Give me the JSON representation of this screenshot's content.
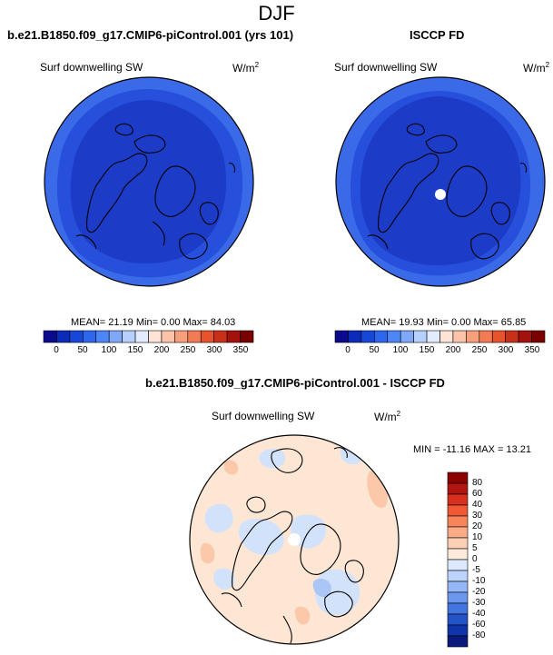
{
  "season": "DJF",
  "left_panel": {
    "title": "b.e21.B1850.f09_g17.CMIP6-piControl.001 (yrs 101)",
    "variable": "Surf downwelling SW",
    "units_base": "W/m",
    "units_exp": "2",
    "stats": "MEAN=  21.19  Min=   0.00  Max=  84.03"
  },
  "right_panel": {
    "title": "ISCCP FD",
    "variable": "Surf downwelling SW",
    "units_base": "W/m",
    "units_exp": "2",
    "stats": "MEAN=  19.93  Min=   0.00  Max=  65.85"
  },
  "diff_panel": {
    "title": "b.e21.B1850.f09_g17.CMIP6-piControl.001 - ISCCP FD",
    "variable": "Surf downwelling SW",
    "units_base": "W/m",
    "units_exp": "2",
    "stats": "MIN = -11.16 MAX =  13.21"
  },
  "colorbar_abs": {
    "ticks": [
      "0",
      "50",
      "100",
      "150",
      "200",
      "250",
      "300",
      "350"
    ],
    "colors": [
      "#0a0a8c",
      "#0c2bb8",
      "#1747d9",
      "#2f66ee",
      "#4f86f7",
      "#7fa8fb",
      "#b7cffd",
      "#e3ecfe",
      "#fde4d6",
      "#fbc4a8",
      "#f8a07c",
      "#f27b55",
      "#e6532d",
      "#c8301a",
      "#a5120e",
      "#7a0000"
    ]
  },
  "colorbar_diff": {
    "ticks": [
      "80",
      "60",
      "40",
      "30",
      "20",
      "10",
      "5",
      "0",
      "-5",
      "-10",
      "-20",
      "-30",
      "-40",
      "-60",
      "-80"
    ],
    "colors": [
      "#8b0000",
      "#b0150f",
      "#d7301f",
      "#ef5a34",
      "#f7855c",
      "#fbab86",
      "#fdd0b5",
      "#fdeadb",
      "#dbe8fd",
      "#bcd3fb",
      "#95b7f6",
      "#6c97ee",
      "#4375e0",
      "#2352c9",
      "#0f33a8",
      "#0a1a7a"
    ]
  },
  "map_colors": {
    "inner": "#1c3cc8",
    "middle": "#2650dc",
    "outer": "#3a6ae8",
    "diff_base": "#fde6d4",
    "diff_blue": "#d2e2fb",
    "diff_blue2": "#aac6f7",
    "diff_orange": "#fbc9a9"
  }
}
